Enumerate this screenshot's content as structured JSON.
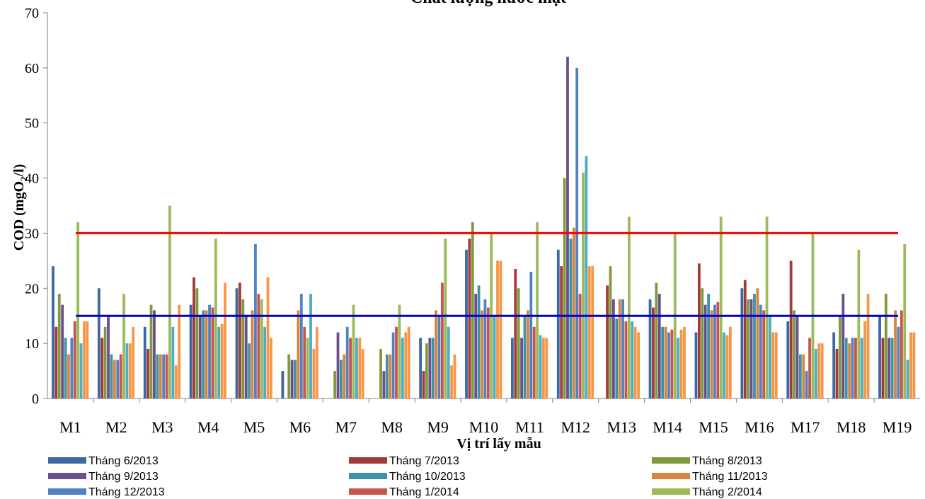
{
  "chart_data": {
    "type": "bar",
    "title": "Chất lượng nước mặt",
    "xlabel": "Vị trí lấy mẫu",
    "ylabel_main": "COD (mgO",
    "ylabel_sub": "2",
    "ylabel_end": "/l)",
    "ylim": [
      0,
      70
    ],
    "yticks": [
      0,
      10,
      20,
      30,
      40,
      50,
      60,
      70
    ],
    "grid": false,
    "legend_position": "bottom",
    "categories": [
      "M1",
      "M2",
      "M3",
      "M4",
      "M5",
      "M6",
      "M7",
      "M8",
      "M9",
      "M10",
      "M11",
      "M12",
      "M13",
      "M14",
      "M15",
      "M16",
      "M17",
      "M18",
      "M19"
    ],
    "series": [
      {
        "name": "Tháng 6/2013",
        "color": "#3E68A0",
        "values": [
          24,
          20,
          13,
          17,
          20,
          5,
          0,
          0,
          11,
          27,
          11,
          27,
          0,
          18,
          12,
          20,
          14,
          12,
          15
        ]
      },
      {
        "name": "Tháng 7/2013",
        "color": "#A23A38",
        "values": [
          13,
          11,
          9,
          22,
          21,
          0,
          0,
          0,
          5,
          29,
          23.5,
          24,
          20.5,
          16.5,
          24.5,
          21.5,
          25,
          9,
          11
        ]
      },
      {
        "name": "Tháng 8/2013",
        "color": "#7E9A3F",
        "values": [
          19,
          13,
          17,
          20,
          18,
          8,
          5,
          9,
          10,
          32,
          20,
          40,
          24,
          21,
          20,
          18,
          16,
          15,
          19
        ]
      },
      {
        "name": "Tháng 9/2013",
        "color": "#6B4F8C",
        "values": [
          17,
          15,
          16,
          15,
          15,
          7,
          12,
          5,
          11,
          19,
          11,
          62,
          18,
          19,
          17,
          18,
          15,
          19,
          11
        ]
      },
      {
        "name": "Tháng 10/2013",
        "color": "#3B93A8",
        "values": [
          11,
          8,
          8,
          16,
          10,
          7,
          7,
          8,
          11,
          20.5,
          15,
          29,
          14.5,
          13,
          19,
          19,
          8,
          11,
          11
        ]
      },
      {
        "name": "Tháng 11/2013",
        "color": "#D9843A",
        "values": [
          8,
          7,
          8,
          16,
          16,
          16,
          8,
          8,
          16,
          16,
          16,
          31,
          18,
          13,
          16,
          20,
          8,
          10,
          16
        ]
      },
      {
        "name": "Tháng 12/2013",
        "color": "#4F82C4",
        "values": [
          11,
          7,
          8,
          17,
          28,
          19,
          13,
          12,
          15,
          18,
          23,
          60,
          18,
          12,
          17,
          17,
          5,
          11,
          13
        ]
      },
      {
        "name": "Tháng 1/2014",
        "color": "#C9534F",
        "values": [
          14,
          8,
          8,
          16.5,
          19,
          13,
          11,
          13,
          21,
          16.5,
          13,
          19,
          14,
          12.5,
          17.5,
          16,
          11,
          11,
          16
        ]
      },
      {
        "name": "Tháng 2/2014",
        "color": "#9BBB59",
        "values": [
          32,
          19,
          35,
          29,
          18,
          11,
          17,
          17,
          29,
          30,
          32,
          41,
          33,
          30,
          33,
          33,
          30,
          27,
          28
        ]
      },
      {
        "name": "",
        "color": "#4BACC6",
        "values": [
          10,
          10,
          13,
          13,
          13,
          19,
          11,
          11,
          13,
          15,
          11.5,
          44,
          14,
          11,
          12,
          15,
          9,
          11,
          7
        ]
      },
      {
        "name": "",
        "color": "#F79646",
        "values": [
          14,
          10,
          6,
          13.5,
          22,
          9,
          11,
          12,
          6,
          25,
          11,
          24,
          13,
          12.5,
          11.5,
          12,
          10,
          14,
          12
        ]
      },
      {
        "name": "",
        "color": "#F79646",
        "values": [
          14,
          13,
          17,
          21,
          11,
          13,
          9,
          13,
          8,
          25,
          11,
          24,
          12,
          13,
          13,
          12,
          10,
          19,
          12
        ]
      }
    ],
    "reference_lines": [
      {
        "y": 30,
        "color": "#FF0000"
      },
      {
        "y": 15,
        "color": "#0000CC"
      }
    ]
  }
}
